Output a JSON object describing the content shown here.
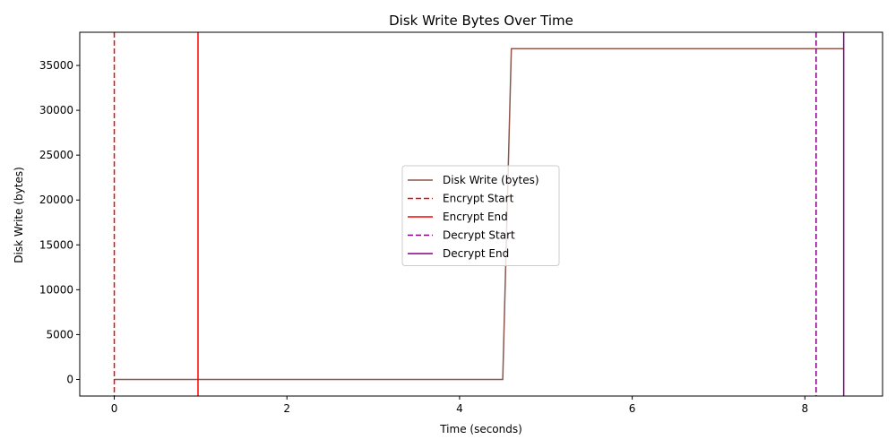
{
  "chart_data": {
    "type": "line",
    "title": "Disk Write Bytes Over Time",
    "xlabel": "Time (seconds)",
    "ylabel": "Disk Write (bytes)",
    "xlim": [
      -0.4,
      8.9
    ],
    "ylim": [
      -1850,
      38700
    ],
    "xticks": [
      0,
      2,
      4,
      6,
      8
    ],
    "yticks": [
      0,
      5000,
      10000,
      15000,
      20000,
      25000,
      30000,
      35000
    ],
    "grid": false,
    "legend_position": "center",
    "series": [
      {
        "name": "Disk Write (bytes)",
        "color": "#8c564b",
        "style": "solid",
        "x": [
          0,
          4.5,
          4.6,
          8.45
        ],
        "y": [
          0,
          0,
          36864,
          36864
        ]
      }
    ],
    "vlines": [
      {
        "name": "Encrypt Start",
        "x": 0.0,
        "color": "#ff0000",
        "style": "dashed"
      },
      {
        "name": "Encrypt End",
        "x": 0.97,
        "color": "#ff0000",
        "style": "solid"
      },
      {
        "name": "Decrypt Start",
        "x": 8.13,
        "color": "#800080",
        "style": "dashed"
      },
      {
        "name": "Decrypt End",
        "x": 8.45,
        "color": "#800080",
        "style": "solid"
      }
    ]
  }
}
